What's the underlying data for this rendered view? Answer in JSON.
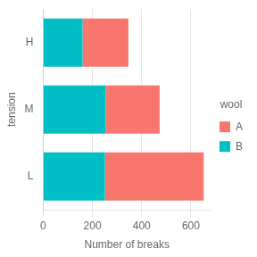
{
  "chart_data": {
    "type": "bar",
    "orientation": "horizontal",
    "stacked": true,
    "categories": [
      "H",
      "M",
      "L"
    ],
    "series": [
      {
        "name": "B",
        "color": "#00BFC4",
        "values": [
          160,
          254,
          251
        ]
      },
      {
        "name": "A",
        "color": "#F8766D",
        "values": [
          186,
          219,
          401
        ]
      }
    ],
    "xlabel": "Number of breaks",
    "ylabel": "tension",
    "xlim": [
      0,
      680
    ],
    "xticks": [
      0,
      200,
      400,
      600
    ],
    "grid": true,
    "legend": "right",
    "legend_title": "wool"
  }
}
